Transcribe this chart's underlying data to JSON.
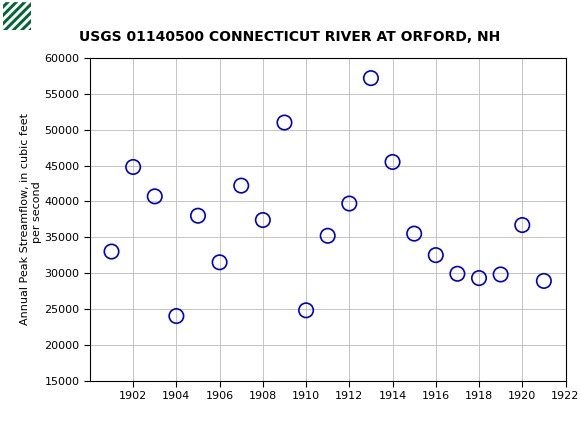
{
  "title": "USGS 01140500 CONNECTICUT RIVER AT ORFORD, NH",
  "ylabel": "Annual Peak Streamflow, in cubic feet\n    per second",
  "xlabel": "",
  "years": [
    1901,
    1902,
    1903,
    1904,
    1905,
    1906,
    1907,
    1908,
    1909,
    1910,
    1911,
    1912,
    1913,
    1914,
    1915,
    1916,
    1917,
    1918,
    1919,
    1920,
    1921
  ],
  "flows": [
    33000,
    44800,
    40700,
    24000,
    38000,
    31500,
    42200,
    37400,
    51000,
    24800,
    35200,
    39700,
    57200,
    45500,
    35500,
    32500,
    29900,
    29300,
    29800,
    36700,
    28900
  ],
  "marker_color": "#0000CC",
  "marker_facecolor": "none",
  "marker_size": 6,
  "marker_linewidth": 1.2,
  "grid_color": "#bbbbbb",
  "ylim": [
    15000,
    60000
  ],
  "xlim": [
    1900,
    1922
  ],
  "yticks": [
    15000,
    20000,
    25000,
    30000,
    35000,
    40000,
    45000,
    50000,
    55000,
    60000
  ],
  "xticks": [
    1902,
    1904,
    1906,
    1908,
    1910,
    1912,
    1914,
    1916,
    1918,
    1920,
    1922
  ],
  "bg_color": "#ffffff",
  "header_color": "#006633",
  "title_fontsize": 10,
  "axis_label_fontsize": 8,
  "tick_fontsize": 8
}
